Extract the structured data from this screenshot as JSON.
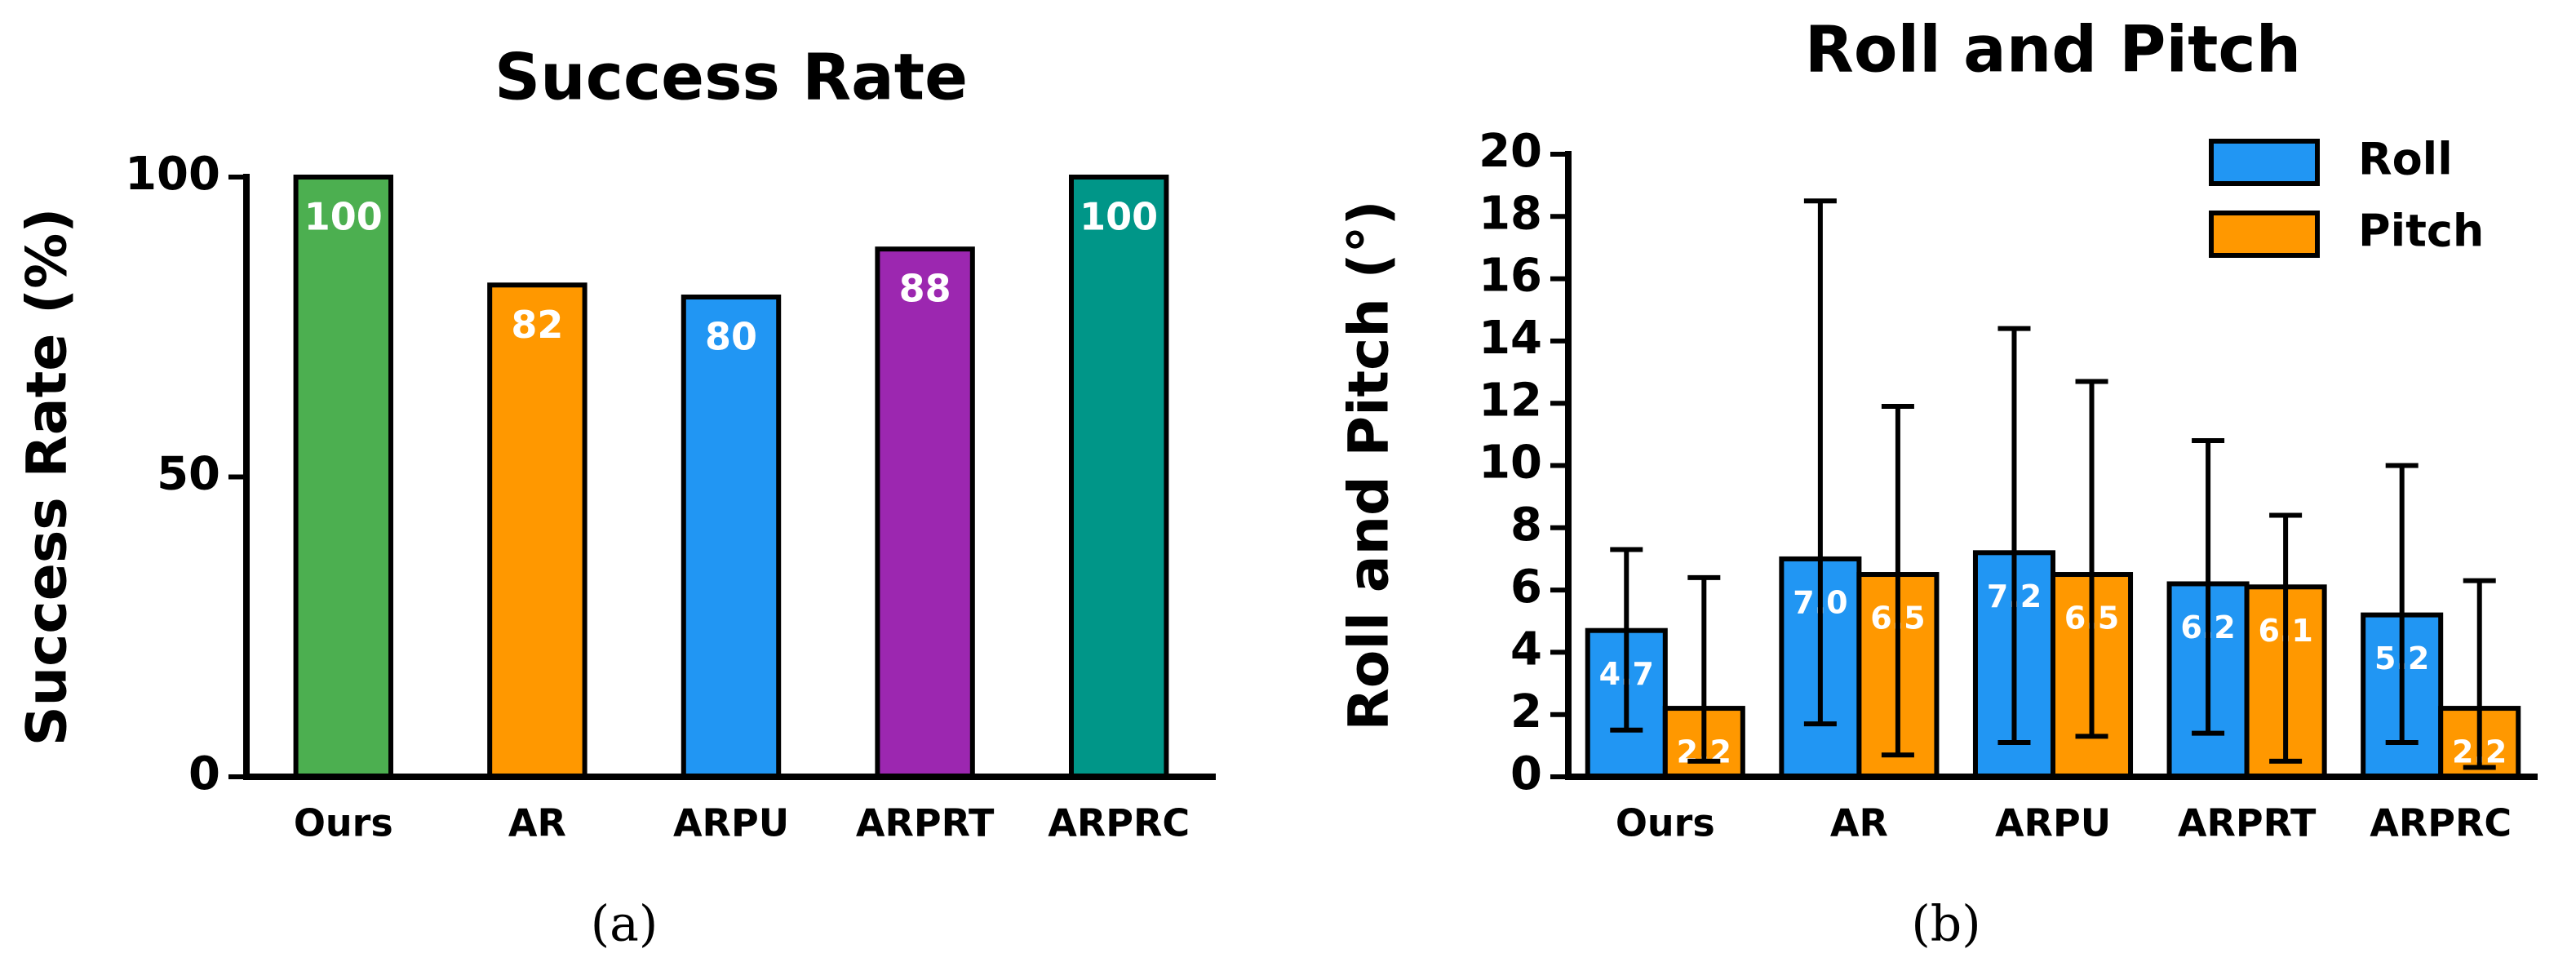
{
  "chart_data": [
    {
      "type": "bar",
      "title": "Success Rate",
      "ylabel": "Success Rate (%)",
      "caption": "(a)",
      "categories": [
        "Ours",
        "AR",
        "ARPU",
        "ARPRT",
        "ARPRC"
      ],
      "values": [
        100,
        82,
        80,
        88,
        100
      ],
      "colors": [
        "#4caf50",
        "#ff9800",
        "#2196f3",
        "#9c27b0",
        "#009688"
      ],
      "ylim": [
        0,
        100
      ],
      "yticks": [
        0,
        50,
        100
      ]
    },
    {
      "type": "grouped_bar",
      "title": "Roll and Pitch",
      "ylabel": "Roll and Pitch (°)",
      "caption": "(b)",
      "categories": [
        "Ours",
        "AR",
        "ARPU",
        "ARPRT",
        "ARPRC"
      ],
      "series": [
        {
          "name": "Roll",
          "color": "#2196f3",
          "values": [
            4.7,
            7.0,
            7.2,
            6.2,
            5.2
          ],
          "value_labels": [
            "4.7",
            "7.0",
            "7.2",
            "6.2",
            "5.2"
          ],
          "lower": [
            1.5,
            1.7,
            1.1,
            1.4,
            1.1
          ],
          "upper": [
            7.3,
            18.5,
            14.4,
            10.8,
            10.0
          ]
        },
        {
          "name": "Pitch",
          "color": "#ff9800",
          "values": [
            2.2,
            6.5,
            6.5,
            6.1,
            2.2
          ],
          "value_labels": [
            "2.2",
            "6.5",
            "6.5",
            "6.1",
            "2.2"
          ],
          "lower": [
            0.5,
            0.7,
            1.3,
            0.5,
            0.3
          ],
          "upper": [
            6.4,
            11.9,
            12.7,
            8.4,
            6.3
          ]
        }
      ],
      "ylim": [
        0,
        20
      ],
      "yticks": [
        0,
        2,
        4,
        6,
        8,
        10,
        12,
        14,
        16,
        18,
        20
      ],
      "legend": "upper right"
    }
  ]
}
